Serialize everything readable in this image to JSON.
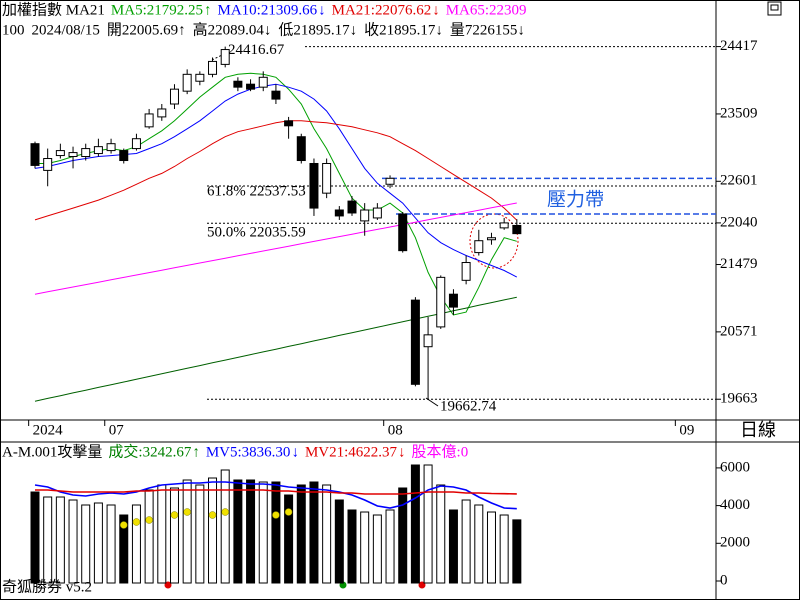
{
  "chart_data": [
    {
      "type": "candlestick",
      "title": "加權指數 MA21",
      "info": [
        "100",
        "2024/08/15",
        "開22005.69↑",
        "高22089.04↓",
        "低21895.17↓",
        "收21895.17↓",
        "量7226155↓"
      ],
      "categories": [
        "2024",
        null,
        null,
        null,
        null,
        null,
        "07",
        null,
        null,
        null,
        null,
        null,
        null,
        null,
        null,
        null,
        null,
        null,
        null,
        null,
        null,
        null,
        null,
        null,
        null,
        null,
        null,
        null,
        "08",
        null,
        null,
        null,
        null,
        null,
        null,
        null,
        null,
        null,
        null,
        null,
        null,
        null,
        null,
        null,
        null,
        null,
        null,
        null,
        null,
        null,
        null,
        "09"
      ],
      "open": [
        23108,
        22748,
        22948,
        22935,
        22935,
        22975,
        23015,
        23015,
        23042,
        23335,
        23469,
        23643,
        23816,
        23950,
        24043,
        24177,
        23950,
        23910,
        23870,
        23816,
        23416,
        23202,
        22841,
        22441,
        22214,
        22334,
        22067,
        22107,
        22561,
        22160,
        20999,
        20371,
        20638,
        21079,
        21266,
        21640,
        21813,
        21973,
        22005.69,
        null,
        null,
        null,
        null,
        null,
        null,
        null,
        null,
        null,
        null,
        null,
        null,
        null
      ],
      "high": [
        23135,
        23042,
        23108,
        23068,
        23108,
        23175,
        23175,
        23042,
        23242,
        23576,
        23643,
        23910,
        24110,
        24083,
        24270,
        24416.67,
        24003,
        23976,
        24083,
        23910,
        23469,
        23242,
        22908,
        22908,
        22267,
        22401,
        22307,
        22307,
        22681,
        22187,
        21039,
        20772,
        21332,
        21146,
        21600,
        21947,
        21907,
        22107,
        22089.04,
        null,
        null,
        null,
        null,
        null,
        null,
        null,
        null,
        null,
        null,
        null,
        null,
        null
      ],
      "low": [
        22775,
        22534,
        22908,
        22775,
        22881,
        22935,
        22975,
        22841,
        23015,
        23309,
        23416,
        23576,
        23776,
        23896,
        24003,
        24137,
        23816,
        23816,
        23816,
        23643,
        23175,
        22841,
        22134,
        22374,
        22080,
        22134,
        21867,
        22080,
        22508,
        21640,
        19837,
        19662.74,
        20611,
        20798,
        21212,
        21600,
        21746,
        21947,
        21895.17,
        null,
        null,
        null,
        null,
        null,
        null,
        null,
        null,
        null,
        null,
        null,
        null,
        null
      ],
      "close": [
        22815,
        22908,
        23015,
        22988,
        23042,
        23068,
        23108,
        22881,
        23175,
        23509,
        23576,
        23843,
        24043,
        24043,
        24217,
        24377,
        23870,
        23843,
        24003,
        23709,
        23349,
        22881,
        22240,
        22841,
        22134,
        22174,
        22214,
        22240,
        22641,
        21666,
        19864,
        20531,
        21306,
        20905,
        21506,
        21800,
        21840,
        22040,
        21895.17,
        null,
        null,
        null,
        null,
        null,
        null,
        null,
        null,
        null,
        null,
        null,
        null,
        null
      ],
      "up_color": "#ffffff",
      "down_color": "#000000",
      "series": [
        {
          "name": "MA5:21792.25",
          "arrow": "↑",
          "color": "#00a000",
          "values": [
            22841,
            22841,
            22881,
            22935,
            22975,
            23015,
            23042,
            23015,
            23068,
            23175,
            23282,
            23416,
            23576,
            23736,
            23870,
            24003,
            24043,
            24057,
            24043,
            24003,
            23843,
            23643,
            23309,
            23042,
            22708,
            22374,
            22214,
            22214,
            22307,
            22174,
            21840,
            21373,
            21039,
            20798,
            20838,
            21172,
            21546,
            21840,
            21792.25,
            null,
            null,
            null,
            null,
            null,
            null,
            null,
            null,
            null,
            null,
            null,
            null,
            null
          ]
        },
        {
          "name": "MA10:21309.66",
          "arrow": "↓",
          "color": "#0000ff",
          "values": [
            22775,
            22801,
            22841,
            22881,
            22908,
            22935,
            22948,
            22962,
            22975,
            23042,
            23108,
            23202,
            23309,
            23416,
            23549,
            23683,
            23776,
            23843,
            23883,
            23910,
            23870,
            23816,
            23709,
            23549,
            23309,
            23042,
            22775,
            22574,
            22441,
            22307,
            22107,
            21907,
            21773,
            21680,
            21600,
            21533,
            21466,
            21399,
            21309.66,
            null,
            null,
            null,
            null,
            null,
            null,
            null,
            null,
            null,
            null,
            null,
            null,
            null
          ]
        },
        {
          "name": "MA21:22076.62",
          "arrow": "↓",
          "color": "#e00000",
          "values": [
            22080,
            22134,
            22187,
            22240,
            22294,
            22347,
            22414,
            22481,
            22561,
            22641,
            22708,
            22801,
            22908,
            23002,
            23108,
            23202,
            23269,
            23309,
            23349,
            23389,
            23416,
            23416,
            23402,
            23389,
            23362,
            23335,
            23295,
            23255,
            23202,
            23108,
            23015,
            22908,
            22801,
            22694,
            22588,
            22481,
            22374,
            22240,
            22076.62,
            null,
            null,
            null,
            null,
            null,
            null,
            null,
            null,
            null,
            null,
            null,
            null,
            null
          ]
        },
        {
          "name": "MA65:22309",
          "color": "#ff00ff",
          "values": [
            21079,
            21111,
            21144,
            21176,
            21208,
            21241,
            21273,
            21305,
            21338,
            21370,
            21403,
            21435,
            21467,
            21500,
            21532,
            21564,
            21597,
            21629,
            21661,
            21694,
            21726,
            21758,
            21791,
            21823,
            21855,
            21888,
            21920,
            21952,
            21985,
            22017,
            22049,
            22082,
            22114,
            22146,
            22179,
            22211,
            22243,
            22276,
            22309,
            null,
            null,
            null,
            null,
            null,
            null,
            null,
            null,
            null,
            null,
            null,
            null,
            null
          ]
        },
        {
          "color": "#006000",
          "values": [
            19637,
            19674,
            19711,
            19748,
            19785,
            19822,
            19858,
            19895,
            19932,
            19969,
            20006,
            20043,
            20080,
            20117,
            20154,
            20191,
            20227,
            20264,
            20301,
            20338,
            20375,
            20412,
            20449,
            20486,
            20523,
            20560,
            20596,
            20633,
            20670,
            20707,
            20744,
            20781,
            20818,
            20855,
            20892,
            20929,
            20965,
            21002,
            21039,
            null,
            null,
            null,
            null,
            null,
            null,
            null,
            null,
            null,
            null,
            null,
            null,
            null
          ]
        }
      ],
      "hlines": [
        {
          "value": 24416.67,
          "label": "24416.67",
          "color": "#000000",
          "dash": "2,2"
        },
        {
          "value": 19662.74,
          "label": "19662.74",
          "color": "#000000",
          "dash": "2,2"
        },
        {
          "value": 22537.53,
          "label": "61.8% 22537.53",
          "color": "#000000",
          "dash": "2,2"
        },
        {
          "value": 22035.59,
          "label": "50.0% 22035.59",
          "color": "#000000",
          "dash": "2,2"
        },
        {
          "value": 22641,
          "color": "#2050e0",
          "dash": "6,3"
        },
        {
          "value": 22160,
          "color": "#2050e0",
          "dash": "6,3"
        }
      ],
      "annotations": [
        {
          "text": "壓力帶",
          "color": "#2060e0"
        }
      ],
      "ylim": [
        19383,
        25045
      ],
      "yticks": [
        24417,
        23509,
        22601,
        22040,
        21479,
        20571,
        19663
      ]
    },
    {
      "type": "bar",
      "title": "A-M.001攻擊量",
      "volume_label": {
        "text": "成交:3242.67",
        "arrow": "↑",
        "color": "#008000"
      },
      "values": [
        4721,
        4456,
        4456,
        4297,
        4032,
        4138,
        4032,
        3501,
        4032,
        4828,
        5093,
        4934,
        5358,
        5093,
        5464,
        5889,
        5358,
        5358,
        5252,
        5252,
        4562,
        5093,
        5252,
        5093,
        4297,
        3767,
        3660,
        3501,
        3767,
        4934,
        6154,
        6154,
        5093,
        3767,
        4297,
        4032,
        3660,
        3501,
        3242.67,
        null,
        null,
        null,
        null,
        null,
        null,
        null,
        null,
        null,
        null,
        null,
        null,
        null
      ],
      "series": [
        {
          "name": "MV5:3836.30",
          "arrow": "↓",
          "color": "#0000ff",
          "values": [
            5093,
            4987,
            4721,
            4562,
            4509,
            4615,
            4668,
            4615,
            4721,
            4934,
            5093,
            5146,
            5199,
            5199,
            5252,
            5252,
            5199,
            5146,
            5146,
            5093,
            4987,
            4934,
            4881,
            4828,
            4721,
            4562,
            4297,
            3979,
            3873,
            4032,
            4403,
            4828,
            5040,
            4987,
            4828,
            4456,
            4138,
            3873,
            3836.3,
            null,
            null,
            null,
            null,
            null,
            null,
            null,
            null,
            null,
            null,
            null,
            null,
            null
          ]
        },
        {
          "name": "MV21:4622.37",
          "arrow": "↓",
          "color": "#e00000",
          "values": [
            4828,
            4828,
            4775,
            4721,
            4721,
            4721,
            4721,
            4721,
            4775,
            4775,
            4828,
            4828,
            4828,
            4828,
            4828,
            4828,
            4828,
            4828,
            4828,
            4775,
            4775,
            4721,
            4721,
            4721,
            4668,
            4668,
            4615,
            4615,
            4615,
            4615,
            4668,
            4721,
            4721,
            4721,
            4668,
            4668,
            4640,
            4630,
            4622.37,
            null,
            null,
            null,
            null,
            null,
            null,
            null,
            null,
            null,
            null,
            null,
            null,
            null
          ]
        },
        {
          "type": "dots",
          "color": "#f0e000",
          "values": [
            null,
            null,
            null,
            null,
            null,
            null,
            null,
            2971,
            3130,
            3236,
            null,
            3501,
            3660,
            null,
            3501,
            3660,
            null,
            null,
            null,
            3501,
            3660,
            null,
            null,
            null,
            null,
            null,
            null,
            null,
            null,
            null,
            null,
            null,
            null,
            null,
            null,
            null,
            null,
            null,
            null,
            null,
            null,
            null,
            null,
            null,
            null,
            null,
            null,
            null,
            null,
            null,
            null,
            null
          ]
        }
      ],
      "extra_label": {
        "text": "股本億:0",
        "color": "#ff00ff"
      },
      "footer": "奇狐勝券 v5.2",
      "ylim": [
        0,
        7215
      ],
      "yticks": [
        0,
        2000,
        4000,
        6000
      ]
    }
  ],
  "period_button": "日線"
}
